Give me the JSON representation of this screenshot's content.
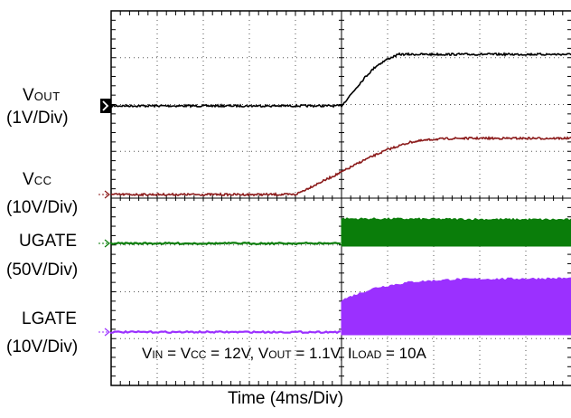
{
  "chart_data": {
    "type": "line",
    "xlabel": "Time (4ms/Div)",
    "xlim": [
      0,
      40
    ],
    "x_unit": "ms",
    "divisions": {
      "x": 10,
      "y": 8
    },
    "grid": true,
    "conditions": {
      "vin": {
        "main": "V",
        "sub": "IN",
        "rest": " = "
      },
      "vcc": {
        "main": "V",
        "sub": "CC",
        "rest": " = 12V, "
      },
      "vout": {
        "main": "V",
        "sub": "OUT",
        "rest": " = 1.1V, "
      },
      "iload": {
        "main": "I",
        "sub": "LOAD",
        "rest": " = 10A"
      }
    },
    "series": [
      {
        "name": "VOUT",
        "label_main": "V",
        "label_sub": "OUT",
        "scale": "(1V/Div)",
        "color": "#000000",
        "marker": "black-arrow",
        "kind": "ramp",
        "points": [
          [
            0,
            0
          ],
          [
            20,
            0
          ],
          [
            21,
            0.3
          ],
          [
            22,
            0.6
          ],
          [
            23,
            0.85
          ],
          [
            24,
            1.0
          ],
          [
            25,
            1.1
          ],
          [
            40,
            1.1
          ]
        ]
      },
      {
        "name": "VCC",
        "label_main": "V",
        "label_sub": "CC",
        "scale": "(10V/Div)",
        "color": "#8b1a1a",
        "marker": "arrow",
        "kind": "ramp",
        "points": [
          [
            0,
            0
          ],
          [
            16,
            0
          ],
          [
            18,
            2.4
          ],
          [
            20,
            4.8
          ],
          [
            22,
            7.4
          ],
          [
            24,
            9.6
          ],
          [
            26,
            11.2
          ],
          [
            28,
            11.8
          ],
          [
            30,
            12
          ],
          [
            40,
            12
          ]
        ]
      },
      {
        "name": "UGATE",
        "label_main": "UGATE",
        "label_sub": "",
        "scale": "(50V/Div)",
        "color": "#0a7d0a",
        "marker": "arrow",
        "kind": "switching",
        "switch_on_ms": 20,
        "envelope": [
          [
            20,
            25
          ],
          [
            20.5,
            25
          ],
          [
            40,
            24
          ]
        ]
      },
      {
        "name": "LGATE",
        "label_main": "LGATE",
        "label_sub": "",
        "scale": "(10V/Div)",
        "color": "#9b30ff",
        "marker": "arrow",
        "kind": "switching",
        "switch_on_ms": 20,
        "envelope": [
          [
            20,
            6.5
          ],
          [
            21,
            7.5
          ],
          [
            23,
            9.2
          ],
          [
            26,
            10.4
          ],
          [
            30,
            11.0
          ],
          [
            40,
            11.2
          ]
        ]
      }
    ]
  }
}
